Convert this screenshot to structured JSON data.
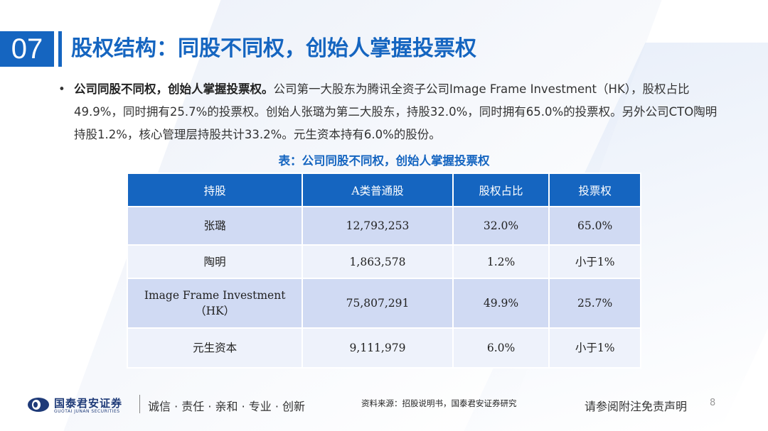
{
  "header": {
    "section_number": "07",
    "title": "股权结构：同股不同权，创始人掌握投票权"
  },
  "bullet": {
    "dot": "•",
    "lead": "公司同股不同权，创始人掌握投票权。",
    "text": "公司第一大股东为腾讯全资子公司Image Frame Investment（HK），股权占比49.9%，同时拥有25.7%的投票权。创始人张璐为第二大股东，持股32.0%，同时拥有65.0%的投票权。另外公司CTO陶明持股1.2%，核心管理层持股共计33.2%。元生资本持有6.0%的股份。"
  },
  "table": {
    "caption": "表：公司同股不同权，创始人掌握投票权",
    "headers": [
      "持股",
      "A类普通股",
      "股权占比",
      "投票权"
    ],
    "rows": [
      [
        "张璐",
        "12,793,253",
        "32.0%",
        "65.0%"
      ],
      [
        "陶明",
        "1,863,578",
        "1.2%",
        "小于1%"
      ],
      [
        "Image Frame Investment\n（HK）",
        "75,807,291",
        "49.9%",
        "25.7%"
      ],
      [
        "元生资本",
        "9,111,979",
        "6.0%",
        "小于1%"
      ]
    ]
  },
  "footer": {
    "logo_cn": "国泰君安证券",
    "logo_en": "GUOTAI JUNAN SECURITIES",
    "motto": "诚信 · 责任 · 亲和 · 专业 · 创新",
    "source": "资料来源：招股说明书，国泰君安证券研究",
    "disclaimer": "请参阅附注免责声明",
    "page_number": "8"
  },
  "colors": {
    "brand_blue": "#1565c0",
    "row_dark": "#d0daf3",
    "row_light": "#eef2fb"
  }
}
